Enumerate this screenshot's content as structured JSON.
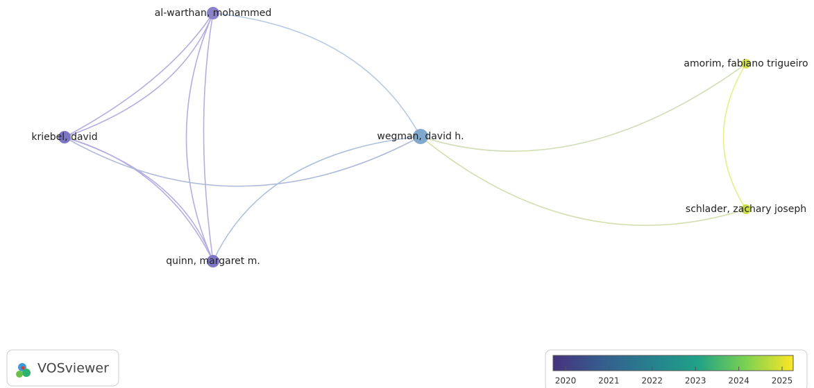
{
  "nodes": [
    {
      "label": "al-warthan, mohammed"
    },
    {
      "label": "kriebel, david"
    },
    {
      "label": "wegman, david h."
    },
    {
      "label": "quinn, margaret m."
    },
    {
      "label": "amorim, fabiano trigueiro"
    },
    {
      "label": "schlader, zachary joseph"
    }
  ],
  "logo": {
    "text": "VOSviewer"
  },
  "color_legend": {
    "ticks": [
      2020,
      2021,
      2022,
      2023,
      2024,
      2025
    ]
  }
}
